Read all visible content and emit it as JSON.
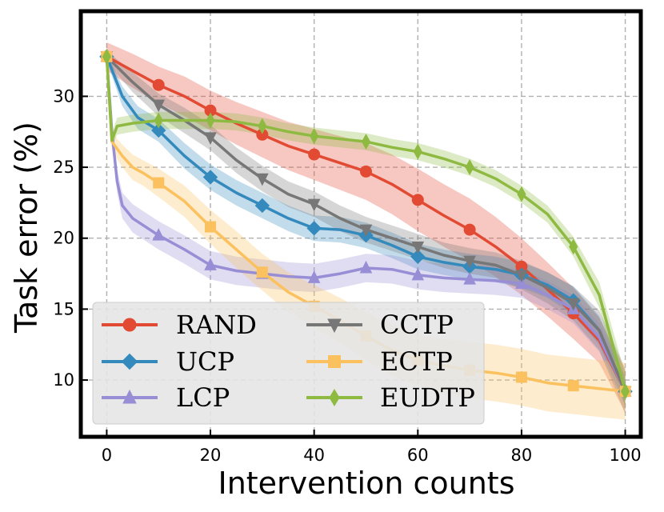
{
  "chart_data": {
    "type": "line",
    "title": "",
    "xlabel": "Intervention counts",
    "ylabel": "Task error (%)",
    "xlim": [
      -5,
      103
    ],
    "ylim": [
      6,
      36
    ],
    "xticks": [
      0,
      20,
      40,
      60,
      80,
      100
    ],
    "yticks": [
      10,
      15,
      20,
      25,
      30
    ],
    "grid": true,
    "legend_position": "lower-left",
    "series": [
      {
        "name": "RAND",
        "color": "#e24a33",
        "marker": "circle",
        "x": [
          0,
          5,
          10,
          15,
          20,
          25,
          30,
          35,
          40,
          45,
          50,
          55,
          60,
          65,
          70,
          75,
          80,
          85,
          90,
          95,
          100
        ],
        "y": [
          32.8,
          31.8,
          30.8,
          30.0,
          29.0,
          28.1,
          27.3,
          26.5,
          25.9,
          25.3,
          24.7,
          23.8,
          22.7,
          21.6,
          20.6,
          19.4,
          18.0,
          16.4,
          14.7,
          12.8,
          9.2
        ],
        "band": [
          1.0,
          1.2,
          1.3,
          1.4,
          1.4,
          1.5,
          1.6,
          1.7,
          1.8,
          1.9,
          2.0,
          2.1,
          2.2,
          2.2,
          2.2,
          2.1,
          2.0,
          1.9,
          1.8,
          1.6,
          1.5
        ]
      },
      {
        "name": "UCP",
        "color": "#348abd",
        "marker": "diamond",
        "x": [
          0,
          3,
          6,
          10,
          15,
          20,
          25,
          30,
          35,
          40,
          45,
          50,
          55,
          60,
          65,
          70,
          75,
          80,
          85,
          90,
          95,
          100
        ],
        "y": [
          32.8,
          30.0,
          28.5,
          27.6,
          25.8,
          24.3,
          23.2,
          22.3,
          21.4,
          20.7,
          20.6,
          20.2,
          19.5,
          18.7,
          18.3,
          18.0,
          17.8,
          17.4,
          16.7,
          15.6,
          13.5,
          9.2
        ],
        "band": [
          0.3,
          0.7,
          0.8,
          0.8,
          0.9,
          0.9,
          0.9,
          0.9,
          0.9,
          0.9,
          0.9,
          0.9,
          0.9,
          0.9,
          0.9,
          0.9,
          0.9,
          0.9,
          0.9,
          1.0,
          1.0,
          1.0
        ]
      },
      {
        "name": "LCP",
        "color": "#988ed5",
        "marker": "triangle-up",
        "x": [
          0,
          1,
          2,
          3,
          5,
          10,
          15,
          20,
          25,
          30,
          35,
          40,
          45,
          50,
          55,
          60,
          65,
          70,
          75,
          80,
          85,
          90,
          95,
          100
        ],
        "y": [
          32.8,
          27.5,
          24.0,
          22.3,
          21.4,
          20.2,
          19.2,
          18.1,
          17.7,
          17.5,
          17.3,
          17.2,
          17.5,
          17.9,
          17.8,
          17.4,
          17.2,
          17.1,
          17.0,
          16.8,
          16.0,
          15.0,
          13.0,
          9.2
        ],
        "band": [
          0.3,
          0.6,
          0.8,
          0.9,
          1.0,
          1.0,
          1.0,
          1.0,
          1.0,
          1.0,
          1.0,
          1.0,
          1.0,
          1.0,
          1.0,
          1.0,
          1.0,
          1.0,
          1.0,
          1.0,
          1.0,
          1.0,
          1.0,
          1.0
        ]
      },
      {
        "name": "CCTP",
        "color": "#777777",
        "marker": "triangle-down",
        "x": [
          0,
          5,
          10,
          15,
          20,
          25,
          30,
          35,
          40,
          45,
          50,
          55,
          60,
          65,
          70,
          75,
          80,
          85,
          90,
          95,
          100
        ],
        "y": [
          32.8,
          31.0,
          29.4,
          28.3,
          27.1,
          25.5,
          24.2,
          23.1,
          22.4,
          21.4,
          20.6,
          20.0,
          19.4,
          18.8,
          18.4,
          18.1,
          17.4,
          16.5,
          15.4,
          13.5,
          9.2
        ],
        "band": [
          0.4,
          0.7,
          0.8,
          0.9,
          0.9,
          0.9,
          0.9,
          0.9,
          0.9,
          0.9,
          0.9,
          0.9,
          0.9,
          0.9,
          0.9,
          0.9,
          1.0,
          1.1,
          1.2,
          1.4,
          1.6
        ]
      },
      {
        "name": "ECTP",
        "color": "#fbc15e",
        "marker": "square",
        "x": [
          0,
          1,
          3,
          5,
          7,
          10,
          15,
          20,
          25,
          30,
          35,
          40,
          45,
          50,
          55,
          60,
          65,
          70,
          75,
          80,
          85,
          90,
          95,
          100
        ],
        "y": [
          32.8,
          26.8,
          25.8,
          25.0,
          24.6,
          23.9,
          22.6,
          20.8,
          19.2,
          17.6,
          16.2,
          15.2,
          14.2,
          13.1,
          12.1,
          11.4,
          11.0,
          10.7,
          10.5,
          10.2,
          9.8,
          9.6,
          9.4,
          9.2
        ],
        "band": [
          0.3,
          0.6,
          0.8,
          0.9,
          0.9,
          1.0,
          1.1,
          1.2,
          1.3,
          1.3,
          1.4,
          1.5,
          1.6,
          1.7,
          1.8,
          1.8,
          1.9,
          2.0,
          2.0,
          2.0,
          2.0,
          2.0,
          2.0,
          2.0
        ]
      },
      {
        "name": "EUDTP",
        "color": "#8eba42",
        "marker": "thin-diamond",
        "x": [
          0,
          1,
          2,
          5,
          10,
          15,
          20,
          25,
          30,
          35,
          40,
          45,
          50,
          55,
          60,
          65,
          70,
          75,
          80,
          85,
          90,
          95,
          100
        ],
        "y": [
          32.8,
          26.9,
          27.9,
          28.1,
          28.3,
          28.3,
          28.3,
          28.2,
          27.9,
          27.5,
          27.2,
          27.0,
          26.8,
          26.4,
          26.1,
          25.6,
          25.0,
          24.2,
          23.1,
          21.7,
          19.4,
          16.0,
          9.2
        ],
        "band": [
          0.3,
          0.5,
          0.6,
          0.6,
          0.6,
          0.6,
          0.6,
          0.6,
          0.6,
          0.6,
          0.6,
          0.6,
          0.6,
          0.6,
          0.6,
          0.6,
          0.6,
          0.6,
          0.6,
          0.6,
          0.7,
          0.9,
          1.2
        ]
      }
    ]
  }
}
